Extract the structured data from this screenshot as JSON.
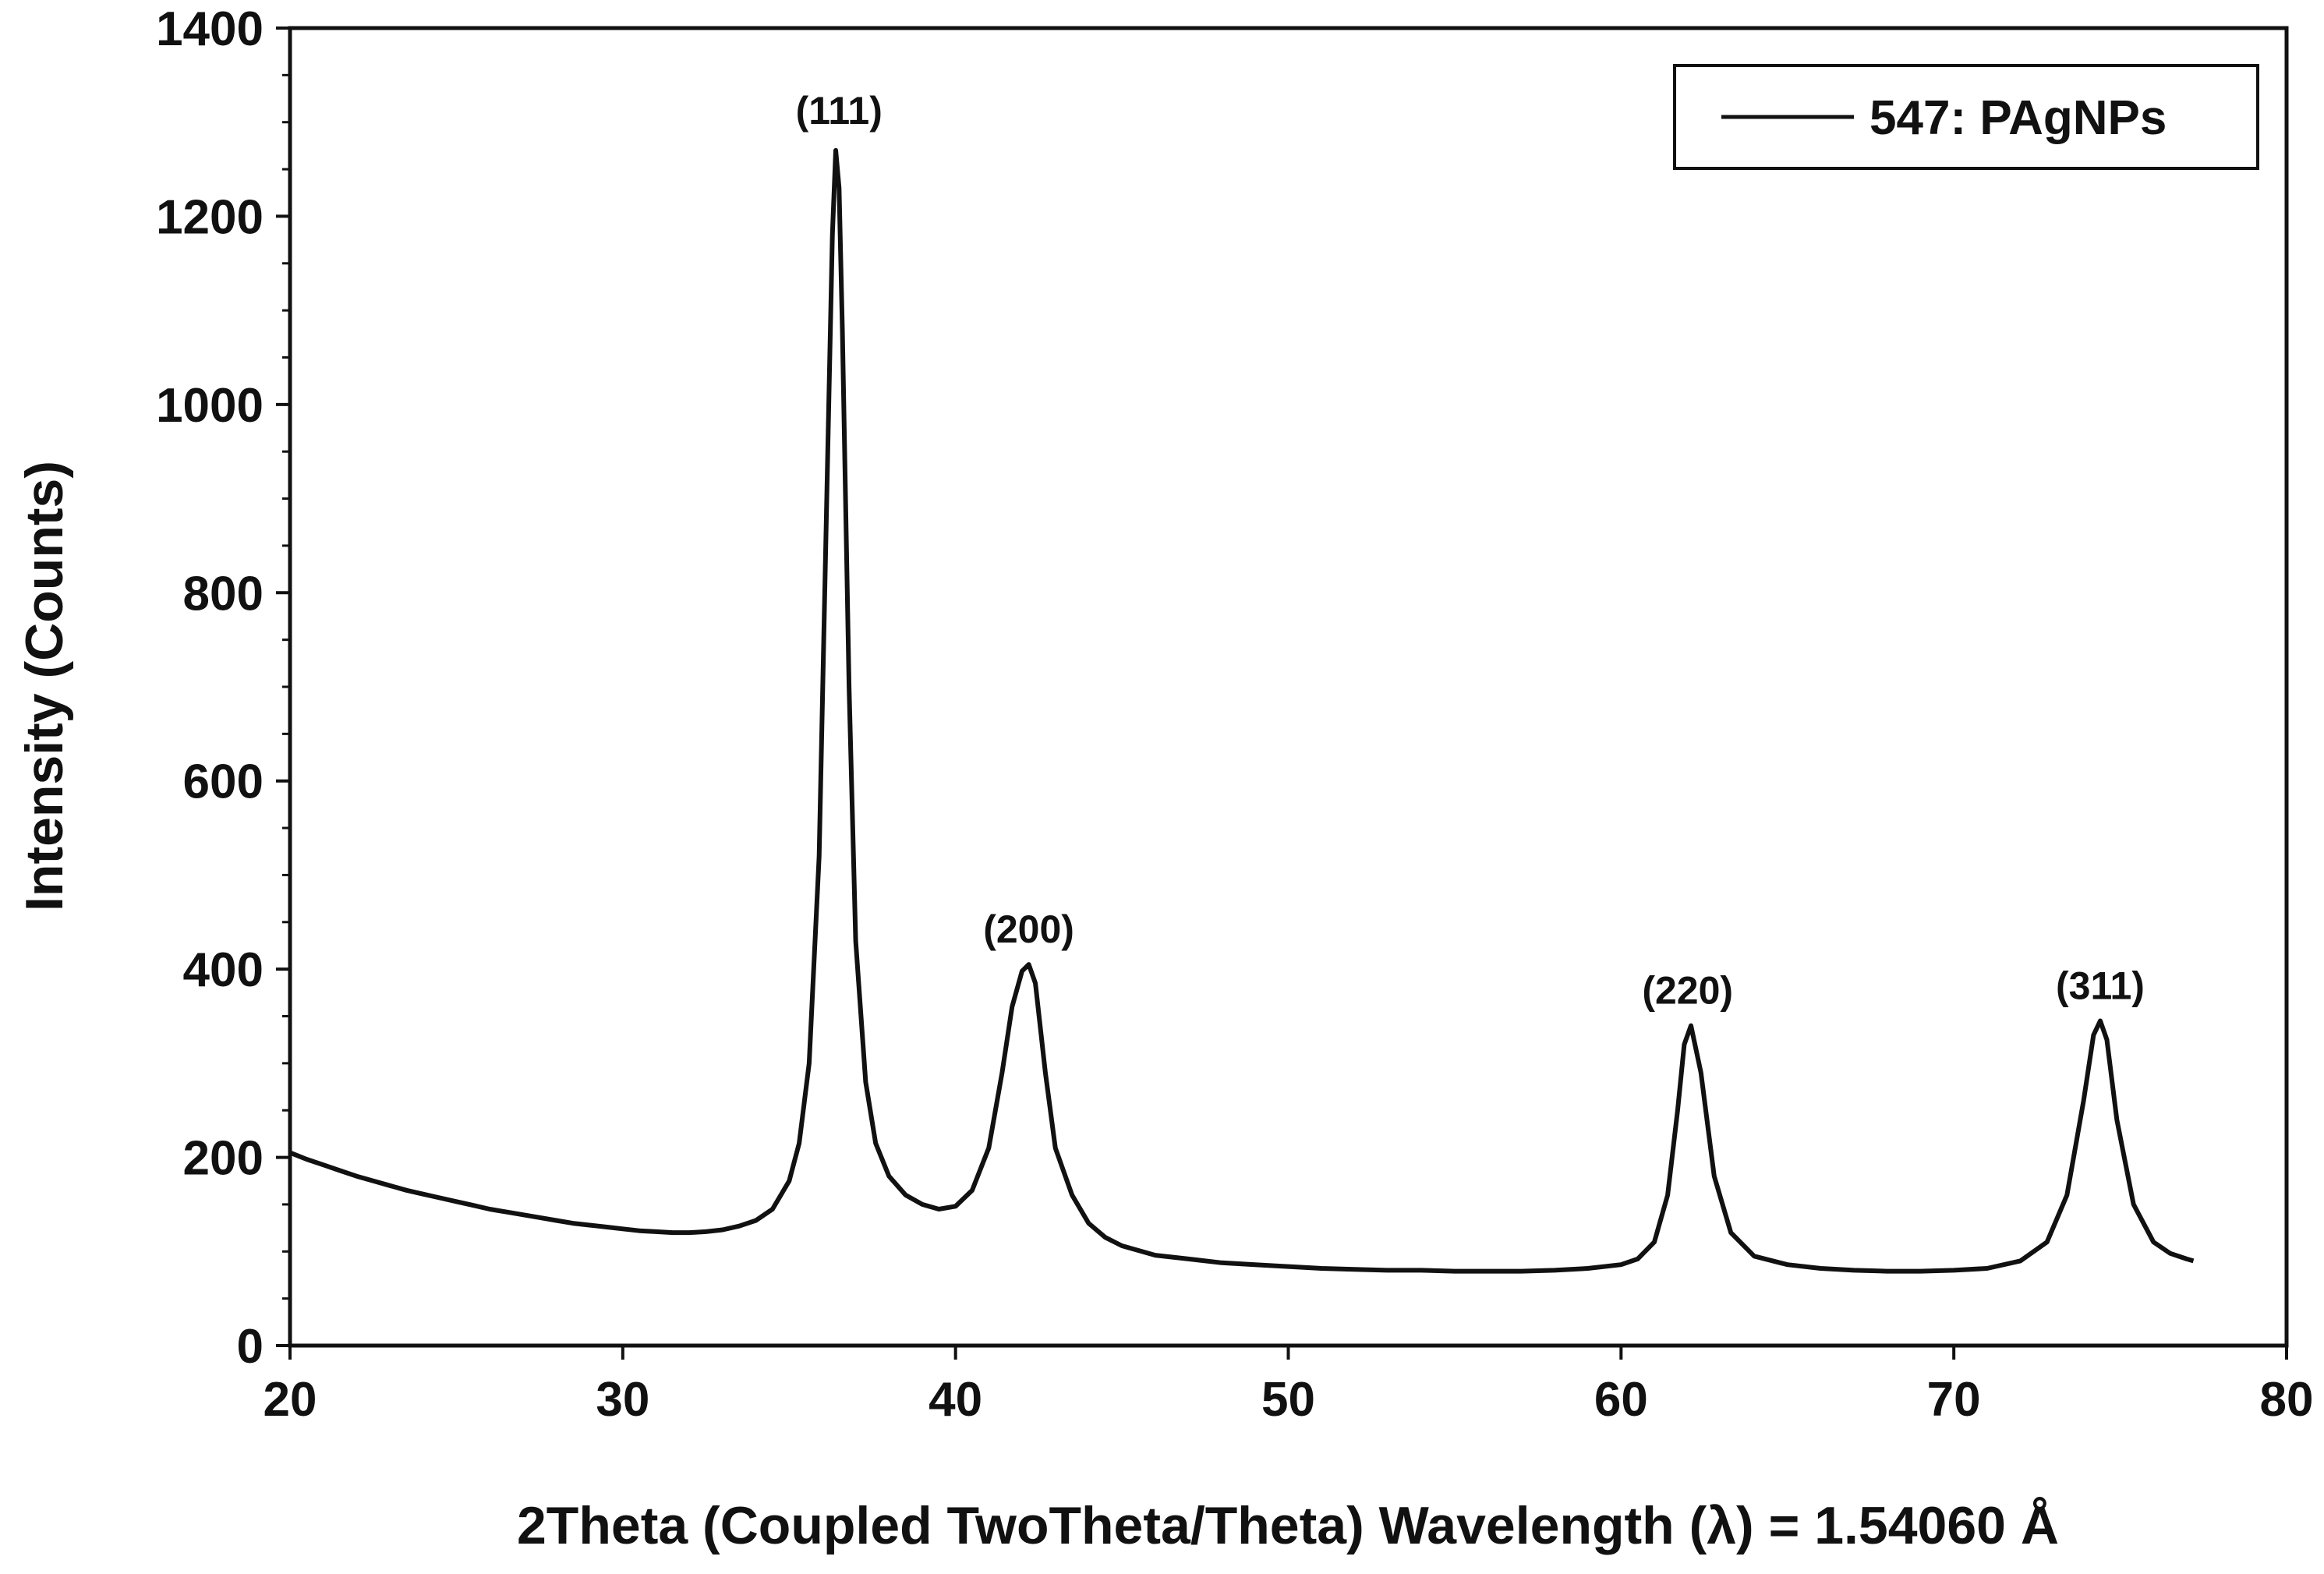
{
  "colors": {
    "line": "#111111",
    "background": "#ffffff",
    "axis": "#111111"
  },
  "chart_data": {
    "type": "line",
    "title": "",
    "xlabel": "2Theta (Coupled TwoTheta/Theta) Wavelength (λ) = 1.54060 Å",
    "ylabel": "Intensity (Counts)",
    "xlim": [
      20,
      80
    ],
    "ylim": [
      0,
      1400
    ],
    "x_ticks": [
      20,
      30,
      40,
      50,
      60,
      70,
      80
    ],
    "y_ticks": [
      0,
      200,
      400,
      600,
      800,
      1000,
      1200,
      1400
    ],
    "x_tick_labels": [
      "20",
      "30",
      "40",
      "50",
      "60",
      "70",
      "80"
    ],
    "y_tick_labels": [
      "0",
      "200",
      "400",
      "600",
      "800",
      "1000",
      "1200",
      "1400"
    ],
    "grid": false,
    "legend": {
      "position": "top-right",
      "entries": [
        "547: PAgNPs"
      ]
    },
    "series": [
      {
        "name": "547: PAgNPs",
        "x": [
          20.0,
          20.5,
          21.0,
          21.5,
          22.0,
          22.5,
          23.0,
          23.5,
          24.0,
          24.5,
          25.0,
          25.5,
          26.0,
          26.5,
          27.0,
          27.5,
          28.0,
          28.5,
          29.0,
          29.5,
          30.0,
          30.5,
          31.0,
          31.5,
          32.0,
          32.5,
          33.0,
          33.5,
          34.0,
          34.5,
          35.0,
          35.3,
          35.6,
          35.9,
          36.1,
          36.3,
          36.4,
          36.5,
          36.6,
          36.8,
          37.0,
          37.3,
          37.6,
          38.0,
          38.5,
          39.0,
          39.5,
          40.0,
          40.5,
          41.0,
          41.4,
          41.7,
          42.0,
          42.2,
          42.4,
          42.7,
          43.0,
          43.5,
          44.0,
          44.5,
          45.0,
          46.0,
          47.0,
          48.0,
          49.0,
          50.0,
          51.0,
          52.0,
          53.0,
          54.0,
          55.0,
          56.0,
          57.0,
          58.0,
          59.0,
          60.0,
          60.5,
          61.0,
          61.4,
          61.7,
          61.9,
          62.1,
          62.4,
          62.8,
          63.3,
          64.0,
          65.0,
          66.0,
          67.0,
          68.0,
          69.0,
          70.0,
          71.0,
          72.0,
          72.8,
          73.4,
          73.9,
          74.2,
          74.4,
          74.6,
          74.9,
          75.4,
          76.0,
          76.5,
          77.0,
          77.2
        ],
        "y": [
          205,
          198,
          192,
          186,
          180,
          175,
          170,
          165,
          161,
          157,
          153,
          149,
          145,
          142,
          139,
          136,
          133,
          130,
          128,
          126,
          124,
          122,
          121,
          120,
          120,
          121,
          123,
          127,
          133,
          145,
          175,
          215,
          300,
          520,
          850,
          1180,
          1270,
          1230,
          1080,
          700,
          430,
          280,
          215,
          180,
          160,
          150,
          145,
          148,
          165,
          210,
          290,
          360,
          398,
          405,
          385,
          290,
          210,
          160,
          130,
          115,
          106,
          96,
          92,
          88,
          86,
          84,
          82,
          81,
          80,
          80,
          79,
          79,
          79,
          80,
          82,
          86,
          92,
          110,
          160,
          250,
          320,
          340,
          290,
          180,
          120,
          95,
          86,
          82,
          80,
          79,
          79,
          80,
          82,
          90,
          110,
          160,
          260,
          330,
          345,
          325,
          240,
          150,
          110,
          98,
          92,
          90
        ]
      }
    ],
    "annotations": [
      {
        "text": "(111)",
        "x": 36.5,
        "y": 1280
      },
      {
        "text": "(200)",
        "x": 42.2,
        "y": 410
      },
      {
        "text": "(220)",
        "x": 62.0,
        "y": 345
      },
      {
        "text": "(311)",
        "x": 74.4,
        "y": 350
      }
    ]
  }
}
